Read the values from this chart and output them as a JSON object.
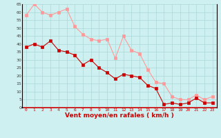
{
  "x": [
    0,
    1,
    2,
    3,
    4,
    5,
    6,
    7,
    8,
    9,
    10,
    11,
    12,
    13,
    14,
    15,
    16,
    17,
    18,
    19,
    20,
    21,
    22,
    23
  ],
  "wind_avg": [
    38,
    40,
    38,
    42,
    36,
    35,
    33,
    27,
    30,
    25,
    22,
    18,
    21,
    20,
    19,
    14,
    12,
    2,
    3,
    2,
    3,
    6,
    3,
    3
  ],
  "wind_gust": [
    58,
    65,
    60,
    58,
    60,
    62,
    51,
    46,
    43,
    42,
    43,
    31,
    45,
    36,
    34,
    24,
    16,
    15,
    7,
    5,
    5,
    8,
    5,
    7
  ],
  "bg_color": "#cff0f0",
  "grid_color": "#aad8d8",
  "avg_color": "#cc0000",
  "gust_color": "#ff9999",
  "xlabel": "Vent moyen/en rafales ( km/h )",
  "xlabel_color": "#cc0000",
  "ylim": [
    0,
    65
  ],
  "yticks": [
    0,
    5,
    10,
    15,
    20,
    25,
    30,
    35,
    40,
    45,
    50,
    55,
    60,
    65
  ],
  "xlim": [
    -0.5,
    23.5
  ],
  "marker": "s",
  "markersize": 2.5,
  "linewidth": 0.8
}
